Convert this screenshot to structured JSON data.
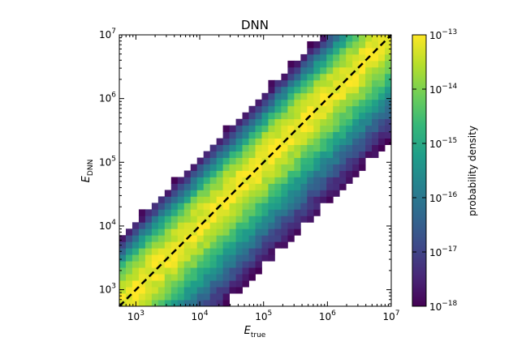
{
  "chart_data": {
    "type": "heatmap",
    "title": "DNN",
    "xlabel": "E",
    "xlabel_sub": "true",
    "ylabel": "E",
    "ylabel_sub": "DNN",
    "x_scale": "log",
    "y_scale": "log",
    "xlim": [
      550,
      10000000
    ],
    "ylim": [
      550,
      10000000
    ],
    "x_ticks": [
      {
        "value": 1000,
        "base": "10",
        "exp": "3"
      },
      {
        "value": 10000,
        "base": "10",
        "exp": "4"
      },
      {
        "value": 100000,
        "base": "10",
        "exp": "5"
      },
      {
        "value": 1000000,
        "base": "10",
        "exp": "6"
      },
      {
        "value": 10000000,
        "base": "10",
        "exp": "7"
      }
    ],
    "y_ticks": [
      {
        "value": 1000,
        "base": "10",
        "exp": "3"
      },
      {
        "value": 10000,
        "base": "10",
        "exp": "4"
      },
      {
        "value": 100000,
        "base": "10",
        "exp": "5"
      },
      {
        "value": 1000000,
        "base": "10",
        "exp": "6"
      },
      {
        "value": 10000000,
        "base": "10",
        "exp": "7"
      }
    ],
    "reference_line": {
      "style": "dashed",
      "color": "#000000",
      "from": [
        550,
        550
      ],
      "to": [
        10000000,
        10000000
      ]
    },
    "bins_per_axis": 42,
    "density_model": {
      "peak_log10_density": -13.1,
      "core_width_dex": 0.35,
      "upper_falloff_per_dex": 6.5,
      "lower_falloff_per_dex": 1.7
    },
    "colorbar": {
      "label": "probability density",
      "scale": "log",
      "range": [
        1e-18,
        1e-13
      ],
      "ticks": [
        {
          "value": 1e-13,
          "base": "10",
          "exp": "−13"
        },
        {
          "value": 1e-14,
          "base": "10",
          "exp": "−14"
        },
        {
          "value": 1e-15,
          "base": "10",
          "exp": "−15"
        },
        {
          "value": 1e-16,
          "base": "10",
          "exp": "−16"
        },
        {
          "value": 1e-17,
          "base": "10",
          "exp": "−17"
        },
        {
          "value": 1e-18,
          "base": "10",
          "exp": "−18"
        }
      ],
      "colormap": "viridis",
      "colors": [
        "#440154",
        "#482878",
        "#3e4a89",
        "#31688e",
        "#26828e",
        "#1f9e89",
        "#35b779",
        "#6ece58",
        "#b5de2b",
        "#fde725"
      ]
    }
  }
}
